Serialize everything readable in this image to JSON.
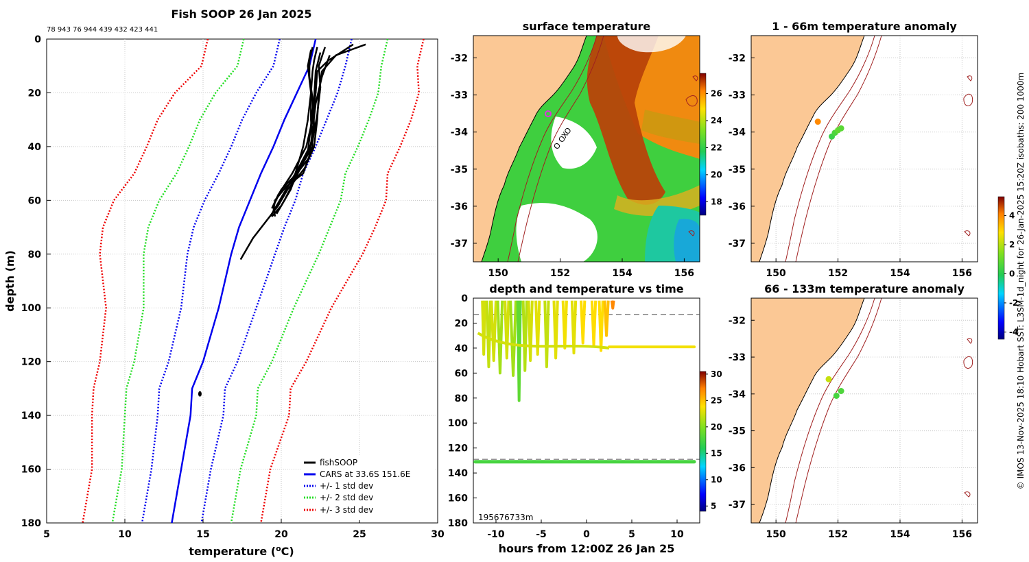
{
  "chart_data": [
    {
      "type": "line",
      "title": "Fish SOOP 26 Jan 2025",
      "header_counts": "78 943 76 944 439 432 423 441",
      "xlabel": "temperature (°C)",
      "ylabel": "depth (m)",
      "xlim": [
        5,
        30
      ],
      "ylim": [
        180,
        0
      ],
      "xticks": [
        "5",
        "10",
        "15",
        "20",
        "25",
        "30"
      ],
      "yticks": [
        "0",
        "20",
        "40",
        "60",
        "80",
        "100",
        "120",
        "140",
        "160",
        "180"
      ],
      "legend": [
        {
          "label": "fishSOOP",
          "color": "#000000",
          "style": "solid"
        },
        {
          "label": "CARS at 33.6S 151.6E",
          "color": "#0000ee",
          "style": "solid"
        },
        {
          "label": "+/- 1 std dev",
          "color": "#0000ee",
          "style": "dotted"
        },
        {
          "label": "+/- 2 std dev",
          "color": "#22dd22",
          "style": "dotted"
        },
        {
          "label": "+/- 3 std dev",
          "color": "#ee0000",
          "style": "dotted"
        }
      ],
      "cars_depth": [
        0,
        10,
        20,
        30,
        40,
        50,
        60,
        70,
        80,
        90,
        100,
        110,
        120,
        130,
        140,
        150,
        160,
        170,
        180
      ],
      "cars_mean": [
        22.2,
        21.8,
        21.0,
        20.2,
        19.5,
        18.7,
        18.0,
        17.3,
        16.8,
        16.4,
        16.0,
        15.5,
        15.0,
        14.3,
        14.2,
        13.9,
        13.6,
        13.3,
        13.0
      ],
      "cars_std": [
        2.3,
        2.3,
        2.6,
        2.7,
        2.7,
        2.7,
        2.9,
        2.9,
        2.8,
        2.6,
        2.4,
        2.3,
        2.2,
        2.1,
        2.1,
        2.0,
        1.9,
        1.9,
        1.9
      ],
      "fish_profiles": [
        {
          "d": [
            3,
            8,
            12,
            20,
            30,
            40,
            50,
            55,
            60,
            64
          ],
          "t": [
            22.3,
            22.1,
            22.0,
            21.9,
            21.9,
            22.0,
            21.4,
            20.3,
            19.6,
            19.5
          ]
        },
        {
          "d": [
            3,
            8,
            14,
            22,
            32,
            42,
            50,
            56,
            62,
            66
          ],
          "t": [
            22.0,
            21.8,
            21.8,
            22.0,
            22.1,
            21.8,
            21.0,
            20.0,
            19.5,
            19.6
          ]
        },
        {
          "d": [
            2,
            6,
            12,
            20,
            30,
            40,
            48,
            56,
            62,
            68,
            74,
            80,
            82
          ],
          "t": [
            25.4,
            23.5,
            22.6,
            22.4,
            22.3,
            22.1,
            21.5,
            20.4,
            19.8,
            19.0,
            18.2,
            17.6,
            17.4
          ]
        },
        {
          "d": [
            2,
            8,
            12,
            20,
            30,
            40,
            50,
            58,
            63
          ],
          "t": [
            24.6,
            23.0,
            22.3,
            22.2,
            22.0,
            21.6,
            20.7,
            19.8,
            19.4
          ]
        },
        {
          "d": [
            4,
            10,
            20,
            30,
            40,
            50,
            58,
            66
          ],
          "t": [
            21.9,
            21.7,
            21.9,
            21.7,
            21.4,
            20.9,
            20.1,
            19.3
          ]
        },
        {
          "d": [
            5,
            12,
            22,
            32,
            42,
            52,
            60,
            65
          ],
          "t": [
            22.5,
            22.2,
            22.1,
            21.9,
            21.7,
            20.9,
            20.2,
            19.7
          ]
        },
        {
          "d": [
            3,
            10,
            18,
            28,
            38,
            48,
            56,
            62,
            66
          ],
          "t": [
            22.8,
            22.4,
            22.5,
            22.3,
            22.0,
            21.1,
            20.6,
            20.0,
            19.4
          ]
        },
        {
          "d": [
            6,
            14,
            24,
            34,
            44,
            50,
            55
          ],
          "t": [
            23.1,
            22.6,
            22.2,
            22.0,
            21.8,
            21.0,
            20.4
          ]
        }
      ],
      "fish_isolated_point": {
        "t": 14.8,
        "d": 132
      }
    },
    {
      "type": "heatmap",
      "title": "surface temperature",
      "xticks": [
        "150",
        "152",
        "154",
        "156"
      ],
      "yticks": [
        "-32",
        "-33",
        "-34",
        "-35",
        "-36",
        "-37"
      ],
      "xlim": [
        149.2,
        156.5
      ],
      "ylim": [
        -37.5,
        -31.4
      ],
      "colorbar_ticks": [
        "18",
        "20",
        "22",
        "24",
        "26"
      ],
      "colorbar_range": [
        17,
        27.5
      ],
      "track_labels": "O OXO"
    },
    {
      "type": "scatter",
      "title": "1 - 66m temperature anomaly",
      "xticks": [
        "150",
        "152",
        "154",
        "156"
      ],
      "yticks": [
        "-32",
        "-33",
        "-34",
        "-35",
        "-36",
        "-37"
      ],
      "points": [
        {
          "lon": 151.35,
          "lat": -33.72,
          "anom": 4.0
        },
        {
          "lon": 151.8,
          "lat": -34.12,
          "anom": 0.3
        },
        {
          "lon": 151.9,
          "lat": -34.02,
          "anom": 0.6
        },
        {
          "lon": 152.0,
          "lat": -33.95,
          "anom": 0.9
        },
        {
          "lon": 152.1,
          "lat": -33.9,
          "anom": 0.8
        }
      ]
    },
    {
      "type": "scatter",
      "title": "66 - 133m temperature anomaly",
      "xticks": [
        "150",
        "152",
        "154",
        "156"
      ],
      "yticks": [
        "-32",
        "-33",
        "-34",
        "-35",
        "-36",
        "-37"
      ],
      "points": [
        {
          "lon": 151.7,
          "lat": -33.6,
          "anom": 2.2
        },
        {
          "lon": 151.95,
          "lat": -34.05,
          "anom": 0.5
        },
        {
          "lon": 152.1,
          "lat": -33.92,
          "anom": 0.6
        }
      ],
      "colorbar_ticks": [
        "-4",
        "-2",
        "0",
        "2",
        "4"
      ],
      "colorbar_range": [
        -4.5,
        5.3
      ]
    },
    {
      "type": "scatter",
      "title": "depth and temperature vs time",
      "xlabel": "hours from 12:00Z 26 Jan 25",
      "xlim": [
        -12.5,
        12.5
      ],
      "ylim": [
        180,
        0
      ],
      "xticks": [
        "-10",
        "-5",
        "0",
        "5",
        "10"
      ],
      "yticks": [
        "0",
        "20",
        "40",
        "60",
        "80",
        "100",
        "120",
        "140",
        "160",
        "180"
      ],
      "dashed_levels": [
        13,
        129
      ],
      "colorbar_ticks": [
        "5",
        "10",
        "15",
        "20",
        "25",
        "30"
      ],
      "colorbar_range": [
        4,
        30.5
      ],
      "bottom_label": "195676733m",
      "deep_series": {
        "depth": 131,
        "temp": 17.5,
        "x_from": -12.3,
        "x_to": 11.9
      }
    }
  ],
  "side_caption": "© IMOS 13-Nov-2025 18:10 Hobart SST: L3SM-1d_night for 26-Jan-2025 15:20Z isobaths: 200  1000m",
  "colors": {
    "land": "#fbc895",
    "coast": "#000000",
    "isobath": "#a02020",
    "grid": "#c8c8c8"
  }
}
